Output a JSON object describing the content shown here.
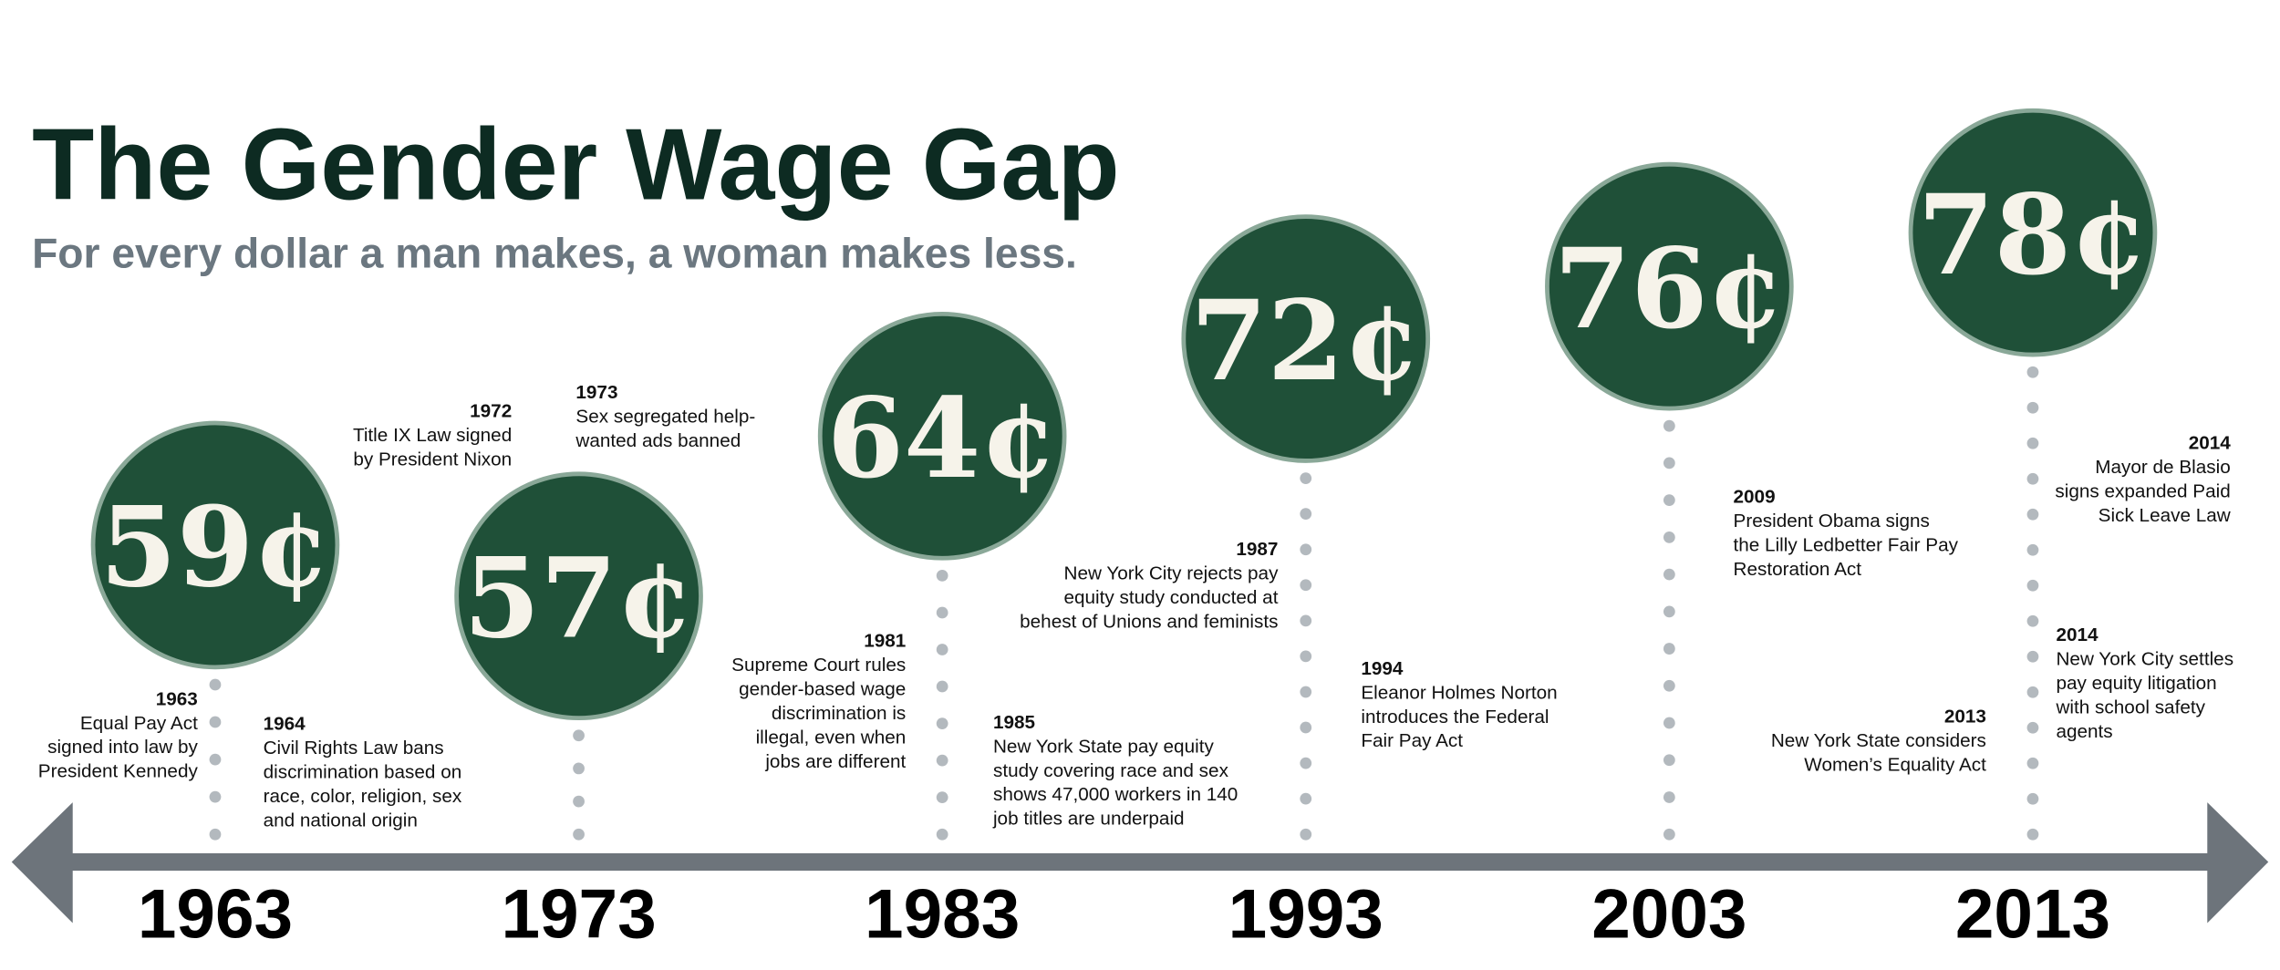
{
  "title": "The Gender Wage Gap",
  "subtitle": "For every dollar a man makes, a woman makes less.",
  "milestones": [
    {
      "year": "1963",
      "wage": "59¢"
    },
    {
      "year": "1973",
      "wage": "57¢"
    },
    {
      "year": "1983",
      "wage": "64¢"
    },
    {
      "year": "1993",
      "wage": "72¢"
    },
    {
      "year": "2003",
      "wage": "76¢"
    },
    {
      "year": "2013",
      "wage": "78¢"
    }
  ],
  "events": [
    {
      "year": "1963",
      "lines": [
        "Equal Pay Act",
        "signed into law by",
        "President Kennedy"
      ]
    },
    {
      "year": "1964",
      "lines": [
        "Civil Rights Law bans",
        "discrimination based on",
        "race, color, religion, sex",
        "and national origin"
      ]
    },
    {
      "year": "1972",
      "lines": [
        "Title IX Law signed",
        "by President Nixon"
      ]
    },
    {
      "year": "1973",
      "lines": [
        "Sex segregated help-",
        "wanted ads banned"
      ]
    },
    {
      "year": "1981",
      "lines": [
        "Supreme Court rules",
        "gender-based wage",
        "discrimination is",
        "illegal, even when",
        "jobs are different"
      ]
    },
    {
      "year": "1985",
      "lines": [
        "New York State pay equity",
        "study covering race and sex",
        "shows 47,000 workers in 140",
        "job titles are underpaid"
      ]
    },
    {
      "year": "1987",
      "lines": [
        "New York City rejects pay",
        "equity study conducted at",
        "behest of Unions and feminists"
      ]
    },
    {
      "year": "1994",
      "lines": [
        "Eleanor Holmes Norton",
        "introduces the Federal",
        "Fair Pay Act"
      ]
    },
    {
      "year": "2009",
      "lines": [
        "President Obama signs",
        "the Lilly Ledbetter Fair Pay",
        "Restoration Act"
      ]
    },
    {
      "year": "2013",
      "lines": [
        "New York State considers",
        "Women’s Equality Act"
      ]
    },
    {
      "year": "2014",
      "lines": [
        "Mayor de Blasio",
        "signs expanded Paid",
        "Sick Leave Law"
      ]
    },
    {
      "year": "2014",
      "lines": [
        "New York City settles",
        "pay equity litigation",
        "with school safety",
        "agents"
      ]
    }
  ]
}
